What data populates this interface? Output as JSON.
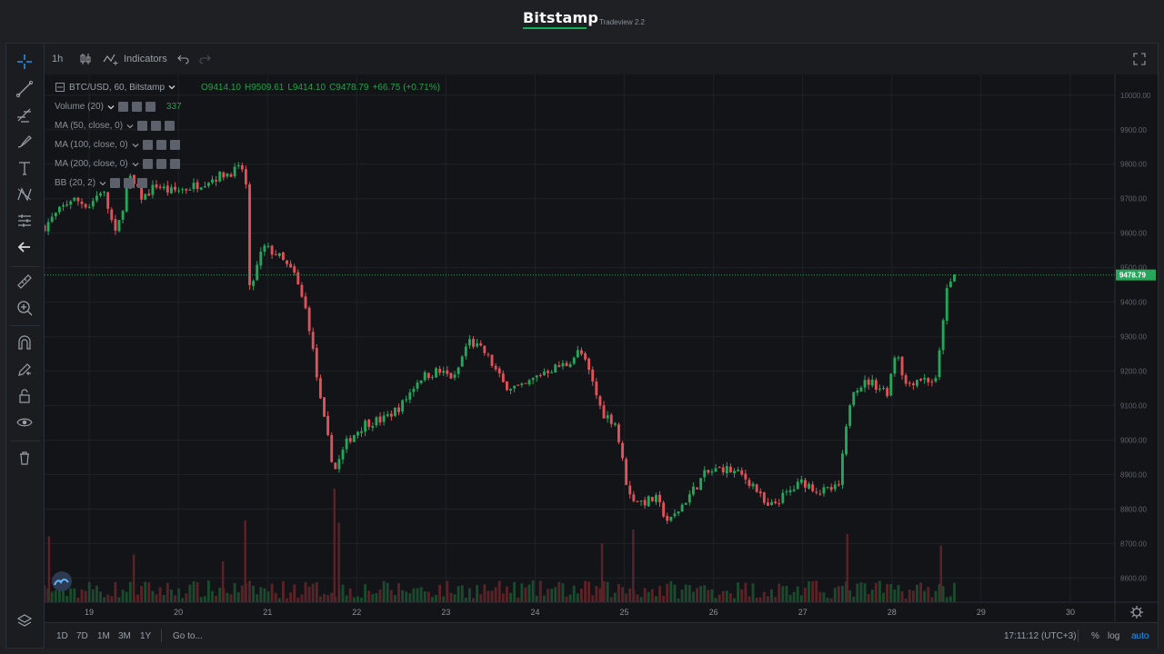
{
  "header": {
    "brand": "Bitstamp",
    "subbrand": "Tradeview 2.2"
  },
  "toolbar": {
    "interval": "1h",
    "indicators_label": "Indicators"
  },
  "legend": {
    "symbol": "BTC/USD, 60, Bitstamp",
    "open": "O9414.10",
    "high": "H9509.61",
    "low": "L9414.10",
    "close": "C9478.79",
    "change": "+66.75 (+0.71%)",
    "studies": [
      {
        "label": "Volume (20)",
        "value": "337"
      },
      {
        "label": "MA (50, close, 0)",
        "value": ""
      },
      {
        "label": "MA (100, close, 0)",
        "value": ""
      },
      {
        "label": "MA (200, close, 0)",
        "value": ""
      },
      {
        "label": "BB (20, 2)",
        "value": ""
      }
    ]
  },
  "bottom": {
    "ranges": [
      "1D",
      "7D",
      "1M",
      "3M",
      "1Y"
    ],
    "goto": "Go to...",
    "time": "17:11:12 (UTC+3)",
    "pct": "%",
    "log": "log",
    "auto": "auto"
  },
  "colors": {
    "up": "#26a65b",
    "down": "#e0525a",
    "accent": "#2196f3",
    "brand_green": "#16b157"
  },
  "chart_data": {
    "type": "candlestick",
    "pair": "BTC/USD",
    "interval": "60",
    "exchange": "Bitstamp",
    "x_ticks": [
      "19",
      "20",
      "21",
      "22",
      "23",
      "24",
      "25",
      "26",
      "27",
      "28",
      "29",
      "30"
    ],
    "y_ticks": [
      "8600.00",
      "8700.00",
      "8800.00",
      "8900.00",
      "9000.00",
      "9100.00",
      "9200.00",
      "9300.00",
      "9400.00",
      "9500.00",
      "9600.00",
      "9700.00",
      "9800.00",
      "9900.00",
      "10000.00"
    ],
    "ylim": [
      8530,
      10060
    ],
    "xlim_days": [
      18.5,
      30.5
    ],
    "last_price": "9478.79",
    "close_path": {
      "x": [
        18.5,
        18.8,
        19.0,
        19.15,
        19.3,
        19.45,
        19.6,
        19.75,
        19.9,
        20.1,
        20.3,
        20.5,
        20.75,
        20.8,
        20.95,
        21.1,
        21.3,
        21.45,
        21.6,
        21.75,
        21.9,
        22.1,
        22.3,
        22.5,
        22.7,
        22.9,
        23.1,
        23.25,
        23.45,
        23.65,
        23.85,
        24.1,
        24.35,
        24.5,
        24.6,
        24.75,
        24.9,
        25.05,
        25.2,
        25.35,
        25.5,
        25.7,
        25.9,
        26.1,
        26.3,
        26.45,
        26.6,
        26.8,
        27.0,
        27.2,
        27.4,
        27.55,
        27.75,
        27.95,
        28.05,
        28.15,
        28.3,
        28.5,
        28.6,
        28.7
      ],
      "y": [
        9620,
        9700,
        9680,
        9730,
        9590,
        9760,
        9700,
        9740,
        9720,
        9730,
        9750,
        9770,
        9790,
        9430,
        9560,
        9540,
        9480,
        9360,
        9100,
        8910,
        9000,
        9050,
        9060,
        9100,
        9180,
        9200,
        9180,
        9290,
        9250,
        9160,
        9150,
        9200,
        9220,
        9260,
        9200,
        9080,
        9050,
        8840,
        8820,
        8830,
        8760,
        8830,
        8900,
        8920,
        8900,
        8870,
        8800,
        8840,
        8880,
        8850,
        8860,
        9150,
        9170,
        9140,
        9270,
        9160,
        9180,
        9170,
        9420,
        9478.79
      ]
    },
    "volume": {
      "x": [
        21.75,
        21.8,
        24.75,
        25.1,
        27.5,
        28.55,
        20.75,
        20.5,
        19.5,
        18.55
      ],
      "values": [
        5,
        3.5,
        2.6,
        3.2,
        3.0,
        2.5,
        3.6,
        1.8,
        2.1,
        2.9
      ]
    }
  }
}
